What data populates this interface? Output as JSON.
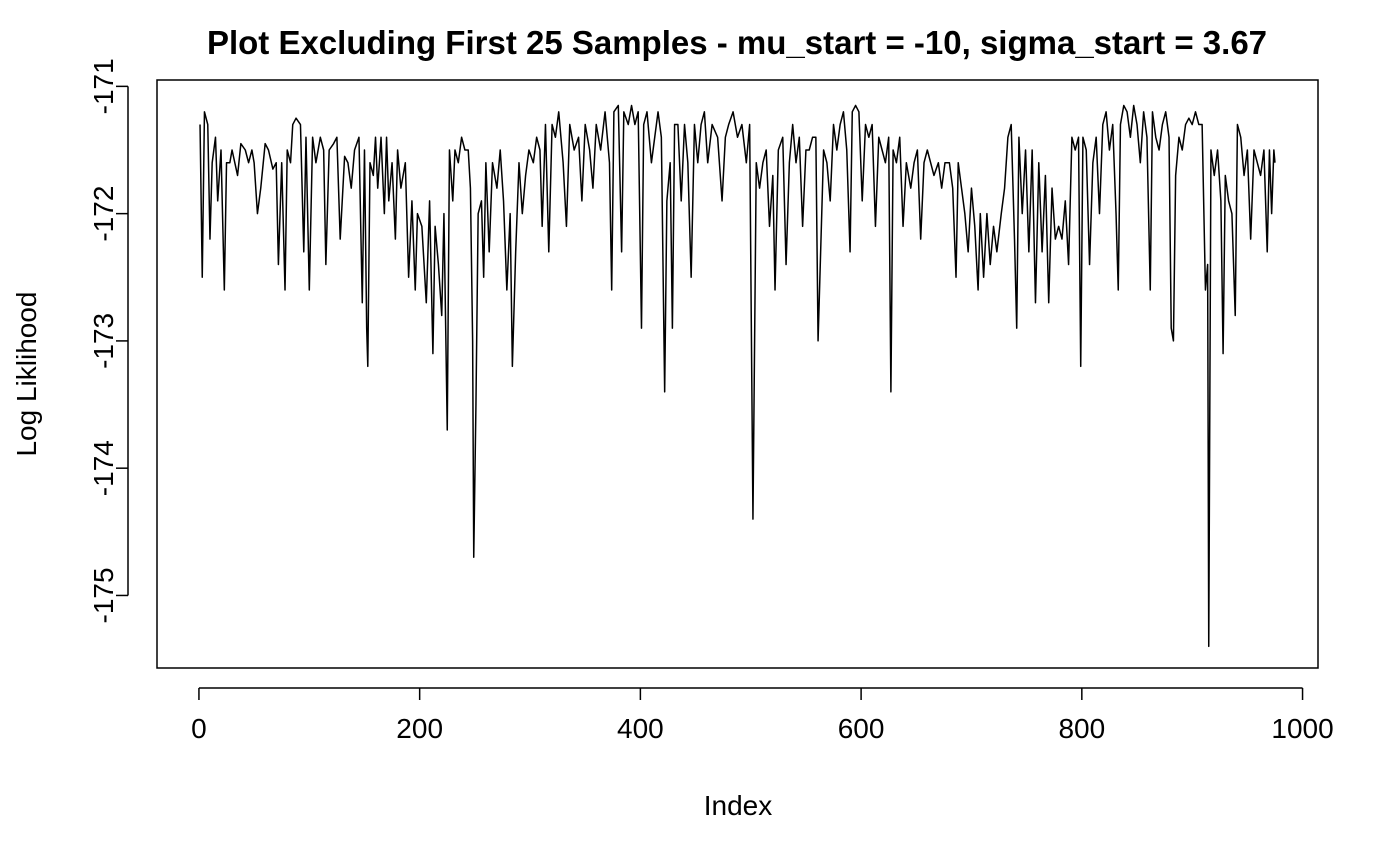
{
  "chart_data": {
    "type": "line",
    "title": "Plot Excluding First 25 Samples - mu_start = -10, sigma_start = 3.67",
    "x_label": "Index",
    "y_label": "Log Liklihood",
    "color": "#000000",
    "xlim": [
      -38,
      1014
    ],
    "ylim": [
      -175.57,
      -170.95
    ],
    "xticks": [
      0,
      200,
      400,
      600,
      800,
      1000
    ],
    "yticks": [
      -171,
      -172,
      -173,
      -174,
      -175
    ],
    "x": [
      1,
      3,
      5,
      8,
      10,
      12,
      15,
      17,
      20,
      23,
      25,
      28,
      30,
      35,
      38,
      42,
      45,
      48,
      50,
      53,
      56,
      60,
      63,
      67,
      70,
      72,
      75,
      78,
      80,
      83,
      85,
      88,
      92,
      95,
      97,
      100,
      103,
      106,
      110,
      113,
      115,
      118,
      122,
      125,
      128,
      132,
      135,
      138,
      141,
      145,
      148,
      150,
      152,
      153,
      155,
      158,
      160,
      162,
      165,
      168,
      170,
      172,
      175,
      178,
      180,
      183,
      187,
      190,
      193,
      196,
      198,
      202,
      206,
      209,
      212,
      214,
      217,
      220,
      222,
      225,
      227,
      230,
      232,
      235,
      238,
      241,
      244,
      246,
      248,
      249,
      251,
      253,
      256,
      258,
      260,
      263,
      266,
      270,
      273,
      276,
      279,
      282,
      284,
      287,
      290,
      293,
      296,
      299,
      303,
      306,
      309,
      311,
      314,
      317,
      320,
      323,
      326,
      330,
      333,
      336,
      340,
      344,
      347,
      350,
      354,
      357,
      360,
      364,
      368,
      372,
      374,
      376,
      380,
      383,
      385,
      389,
      392,
      395,
      398,
      401,
      403,
      406,
      410,
      413,
      416,
      419,
      422,
      424,
      427,
      429,
      431,
      434,
      437,
      440,
      443,
      446,
      449,
      452,
      455,
      458,
      461,
      465,
      470,
      474,
      477,
      480,
      484,
      488,
      492,
      496,
      499,
      502,
      505,
      508,
      511,
      514,
      517,
      520,
      522,
      525,
      529,
      532,
      535,
      538,
      541,
      544,
      547,
      550,
      553,
      556,
      559,
      561,
      563,
      566,
      569,
      572,
      575,
      578,
      581,
      584,
      587,
      590,
      592,
      595,
      598,
      601,
      604,
      607,
      610,
      613,
      616,
      619,
      622,
      625,
      627,
      629,
      632,
      635,
      638,
      641,
      645,
      648,
      651,
      654,
      657,
      660,
      663,
      666,
      670,
      673,
      676,
      680,
      683,
      686,
      688,
      691,
      694,
      697,
      700,
      703,
      706,
      708,
      711,
      714,
      717,
      720,
      723,
      727,
      730,
      733,
      736,
      739,
      741,
      743,
      746,
      749,
      752,
      755,
      758,
      761,
      764,
      767,
      770,
      773,
      776,
      779,
      782,
      785,
      788,
      791,
      794,
      797,
      799,
      801,
      804,
      807,
      810,
      813,
      816,
      819,
      822,
      825,
      828,
      831,
      833,
      835,
      838,
      841,
      844,
      847,
      850,
      853,
      856,
      859,
      862,
      864,
      867,
      870,
      873,
      876,
      879,
      881,
      883,
      885,
      888,
      891,
      894,
      897,
      900,
      903,
      906,
      909,
      912,
      914,
      915,
      917,
      920,
      923,
      926,
      928,
      930,
      933,
      936,
      939,
      941,
      944,
      947,
      950,
      953,
      956,
      959,
      962,
      965,
      968,
      970,
      972,
      974,
      975
    ],
    "values": [
      -171.3,
      -172.5,
      -171.2,
      -171.3,
      -172.2,
      -171.6,
      -171.4,
      -171.9,
      -171.5,
      -172.6,
      -171.6,
      -171.6,
      -171.5,
      -171.7,
      -171.45,
      -171.5,
      -171.6,
      -171.5,
      -171.6,
      -172.0,
      -171.8,
      -171.45,
      -171.5,
      -171.65,
      -171.6,
      -172.4,
      -171.6,
      -172.6,
      -171.5,
      -171.6,
      -171.3,
      -171.25,
      -171.3,
      -172.3,
      -171.4,
      -172.6,
      -171.4,
      -171.6,
      -171.4,
      -171.5,
      -172.4,
      -171.5,
      -171.45,
      -171.4,
      -172.2,
      -171.55,
      -171.6,
      -171.8,
      -171.5,
      -171.4,
      -172.7,
      -171.5,
      -172.9,
      -173.2,
      -171.6,
      -171.7,
      -171.4,
      -171.8,
      -171.4,
      -172.0,
      -171.4,
      -171.9,
      -171.6,
      -172.2,
      -171.5,
      -171.8,
      -171.6,
      -172.5,
      -171.9,
      -172.6,
      -172.0,
      -172.1,
      -172.7,
      -171.9,
      -173.1,
      -172.1,
      -172.4,
      -172.8,
      -172.0,
      -173.7,
      -171.5,
      -171.9,
      -171.5,
      -171.6,
      -171.4,
      -171.5,
      -171.5,
      -171.8,
      -173.0,
      -174.7,
      -173.5,
      -172.0,
      -171.9,
      -172.5,
      -171.6,
      -172.3,
      -171.6,
      -171.8,
      -171.5,
      -171.9,
      -172.6,
      -172.0,
      -173.2,
      -172.3,
      -171.6,
      -172.0,
      -171.7,
      -171.5,
      -171.6,
      -171.4,
      -171.5,
      -172.1,
      -171.3,
      -172.3,
      -171.3,
      -171.4,
      -171.2,
      -171.6,
      -172.1,
      -171.3,
      -171.5,
      -171.4,
      -171.9,
      -171.3,
      -171.5,
      -171.8,
      -171.3,
      -171.5,
      -171.2,
      -171.6,
      -172.6,
      -171.2,
      -171.15,
      -172.3,
      -171.2,
      -171.3,
      -171.15,
      -171.3,
      -171.2,
      -172.9,
      -171.3,
      -171.2,
      -171.6,
      -171.4,
      -171.2,
      -171.4,
      -173.4,
      -171.9,
      -171.6,
      -172.9,
      -171.3,
      -171.3,
      -171.9,
      -171.3,
      -171.6,
      -172.5,
      -171.3,
      -171.6,
      -171.3,
      -171.2,
      -171.6,
      -171.3,
      -171.4,
      -171.9,
      -171.4,
      -171.3,
      -171.2,
      -171.4,
      -171.3,
      -171.6,
      -171.3,
      -174.4,
      -171.6,
      -171.8,
      -171.6,
      -171.5,
      -172.1,
      -171.7,
      -172.6,
      -171.5,
      -171.4,
      -172.4,
      -171.6,
      -171.3,
      -171.6,
      -171.4,
      -172.1,
      -171.5,
      -171.5,
      -171.4,
      -171.4,
      -173.0,
      -172.4,
      -171.5,
      -171.6,
      -171.9,
      -171.3,
      -171.5,
      -171.3,
      -171.2,
      -171.5,
      -172.3,
      -171.2,
      -171.15,
      -171.2,
      -171.9,
      -171.3,
      -171.4,
      -171.3,
      -172.1,
      -171.4,
      -171.5,
      -171.6,
      -171.4,
      -173.4,
      -171.5,
      -171.6,
      -171.4,
      -172.1,
      -171.6,
      -171.8,
      -171.6,
      -171.5,
      -172.2,
      -171.6,
      -171.5,
      -171.6,
      -171.7,
      -171.6,
      -171.8,
      -171.6,
      -171.6,
      -171.8,
      -172.5,
      -171.6,
      -171.8,
      -172.0,
      -172.3,
      -171.8,
      -172.1,
      -172.6,
      -172.0,
      -172.5,
      -172.0,
      -172.4,
      -172.1,
      -172.3,
      -172.0,
      -171.8,
      -171.4,
      -171.3,
      -172.2,
      -172.9,
      -171.4,
      -172.0,
      -171.5,
      -172.3,
      -171.5,
      -172.7,
      -171.6,
      -172.3,
      -171.7,
      -172.7,
      -171.8,
      -172.2,
      -172.1,
      -172.2,
      -171.9,
      -172.4,
      -171.4,
      -171.5,
      -171.4,
      -173.2,
      -171.4,
      -171.5,
      -172.4,
      -171.6,
      -171.4,
      -172.0,
      -171.3,
      -171.2,
      -171.5,
      -171.3,
      -172.0,
      -172.6,
      -171.3,
      -171.15,
      -171.2,
      -171.4,
      -171.15,
      -171.3,
      -171.6,
      -171.2,
      -171.4,
      -172.6,
      -171.2,
      -171.4,
      -171.5,
      -171.3,
      -171.2,
      -171.4,
      -172.9,
      -173.0,
      -171.7,
      -171.4,
      -171.5,
      -171.3,
      -171.25,
      -171.3,
      -171.2,
      -171.3,
      -171.3,
      -172.6,
      -172.4,
      -175.4,
      -171.5,
      -171.7,
      -171.5,
      -171.9,
      -173.1,
      -171.7,
      -171.9,
      -172.0,
      -172.8,
      -171.3,
      -171.4,
      -171.7,
      -171.5,
      -172.2,
      -171.5,
      -171.6,
      -171.7,
      -171.5,
      -172.3,
      -171.5,
      -172.0,
      -171.5,
      -171.6
    ]
  }
}
